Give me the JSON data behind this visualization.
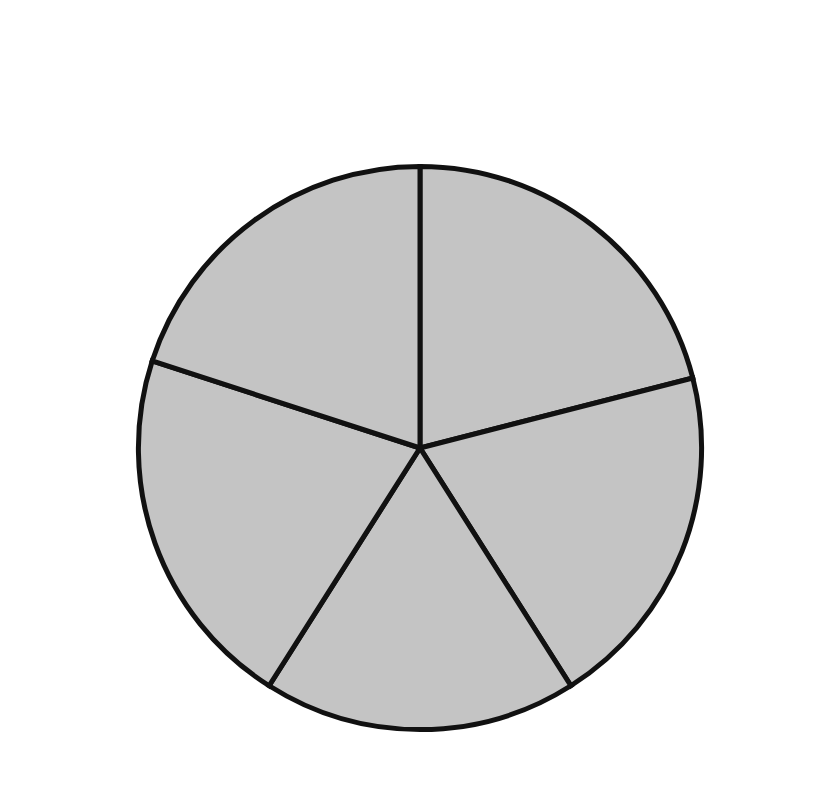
{
  "chart_data": {
    "type": "pie",
    "categories": [
      null,
      null,
      null,
      null,
      null
    ],
    "values": [
      21,
      20,
      18,
      21,
      20
    ],
    "colors": [
      "#c4c4c4",
      "#c4c4c4",
      "#c4c4c4",
      "#c4c4c4",
      "#c4c4c4"
    ]
  }
}
